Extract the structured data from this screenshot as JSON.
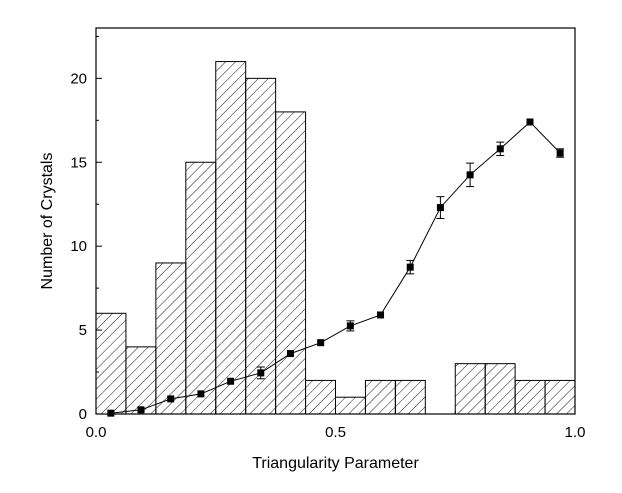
{
  "chart_data": {
    "type": "bar",
    "xlabel": "Triangularity Parameter",
    "ylabel": "Number of Crystals",
    "xlim": [
      0.0,
      1.0
    ],
    "ylim": [
      0,
      23
    ],
    "x_ticks": [
      {
        "value": 0.0,
        "label": "0.0"
      },
      {
        "value": 0.5,
        "label": "0.5"
      },
      {
        "value": 1.0,
        "label": "1.0"
      }
    ],
    "y_ticks": [
      {
        "value": 0,
        "label": "0"
      },
      {
        "value": 5,
        "label": "5"
      },
      {
        "value": 10,
        "label": "10"
      },
      {
        "value": 15,
        "label": "15"
      },
      {
        "value": 20,
        "label": "20"
      }
    ],
    "grid": false,
    "bar_fill": "hatched",
    "bin_width": 0.0625,
    "bins": [
      {
        "x_start": 0.0,
        "count": 6
      },
      {
        "x_start": 0.0625,
        "count": 4
      },
      {
        "x_start": 0.125,
        "count": 9
      },
      {
        "x_start": 0.1875,
        "count": 15
      },
      {
        "x_start": 0.25,
        "count": 21
      },
      {
        "x_start": 0.3125,
        "count": 20
      },
      {
        "x_start": 0.375,
        "count": 18
      },
      {
        "x_start": 0.4375,
        "count": 2
      },
      {
        "x_start": 0.5,
        "count": 1
      },
      {
        "x_start": 0.5625,
        "count": 2
      },
      {
        "x_start": 0.625,
        "count": 2
      },
      {
        "x_start": 0.6875,
        "count": 0
      },
      {
        "x_start": 0.75,
        "count": 3
      },
      {
        "x_start": 0.8125,
        "count": 3
      },
      {
        "x_start": 0.875,
        "count": 2
      },
      {
        "x_start": 0.9375,
        "count": 2
      }
    ],
    "line_series": {
      "marker": "square",
      "color": "#000000",
      "points": [
        {
          "x": 0.031,
          "y": 0.05,
          "err": 0.0
        },
        {
          "x": 0.094,
          "y": 0.25,
          "err": 0.0
        },
        {
          "x": 0.156,
          "y": 0.9,
          "err": 0.0
        },
        {
          "x": 0.219,
          "y": 1.2,
          "err": 0.0
        },
        {
          "x": 0.281,
          "y": 1.95,
          "err": 0.0
        },
        {
          "x": 0.344,
          "y": 2.45,
          "err": 0.35
        },
        {
          "x": 0.406,
          "y": 3.6,
          "err": 0.0
        },
        {
          "x": 0.469,
          "y": 4.25,
          "err": 0.0
        },
        {
          "x": 0.531,
          "y": 5.25,
          "err": 0.3
        },
        {
          "x": 0.594,
          "y": 5.9,
          "err": 0.0
        },
        {
          "x": 0.656,
          "y": 8.75,
          "err": 0.4
        },
        {
          "x": 0.719,
          "y": 12.3,
          "err": 0.65
        },
        {
          "x": 0.781,
          "y": 14.25,
          "err": 0.7
        },
        {
          "x": 0.844,
          "y": 15.8,
          "err": 0.4
        },
        {
          "x": 0.906,
          "y": 17.4,
          "err": 0.0
        },
        {
          "x": 0.969,
          "y": 15.55,
          "err": 0.25
        }
      ]
    }
  }
}
